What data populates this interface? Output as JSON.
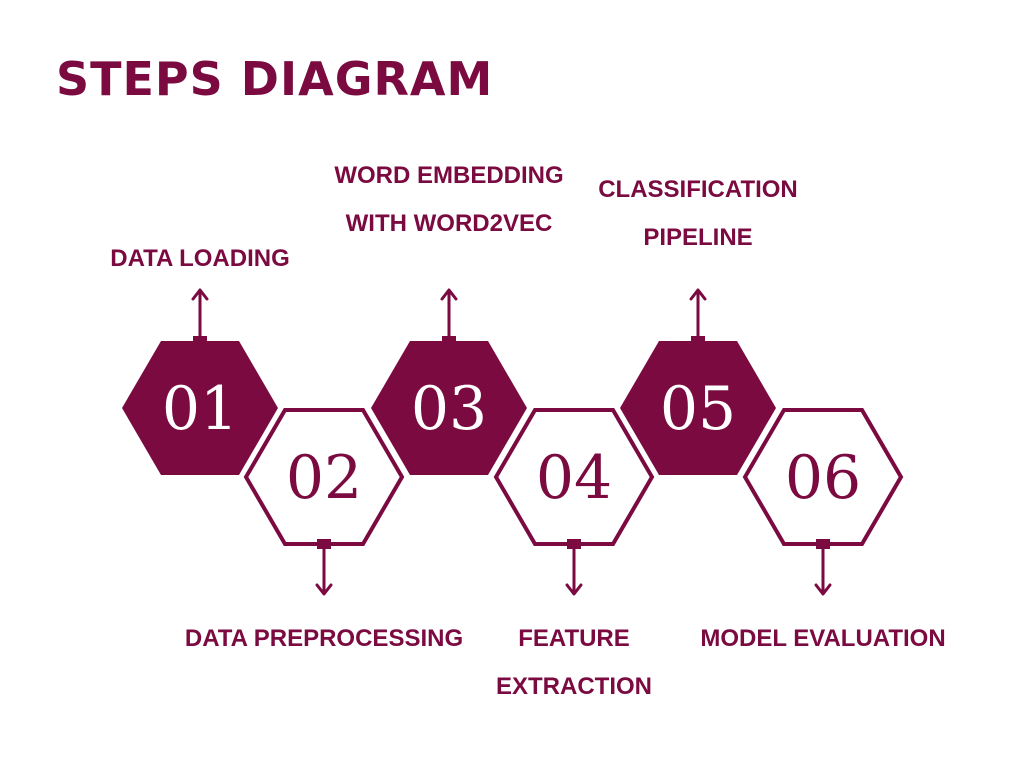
{
  "title": "STEPS DIAGRAM",
  "colors": {
    "accent": "#7a0a40",
    "background": "#ffffff"
  },
  "steps": [
    {
      "number": "01",
      "label_lines": [
        "DATA LOADING"
      ],
      "style": "filled",
      "label_side": "top"
    },
    {
      "number": "02",
      "label_lines": [
        "DATA PREPROCESSING"
      ],
      "style": "outline",
      "label_side": "bottom"
    },
    {
      "number": "03",
      "label_lines": [
        "WORD EMBEDDING",
        "WITH WORD2VEC"
      ],
      "style": "filled",
      "label_side": "top"
    },
    {
      "number": "04",
      "label_lines": [
        "FEATURE",
        "EXTRACTION"
      ],
      "style": "outline",
      "label_side": "bottom"
    },
    {
      "number": "05",
      "label_lines": [
        "CLASSIFICATION",
        "PIPELINE"
      ],
      "style": "filled",
      "label_side": "top"
    },
    {
      "number": "06",
      "label_lines": [
        "MODEL EVALUATION"
      ],
      "style": "outline",
      "label_side": "bottom"
    }
  ]
}
